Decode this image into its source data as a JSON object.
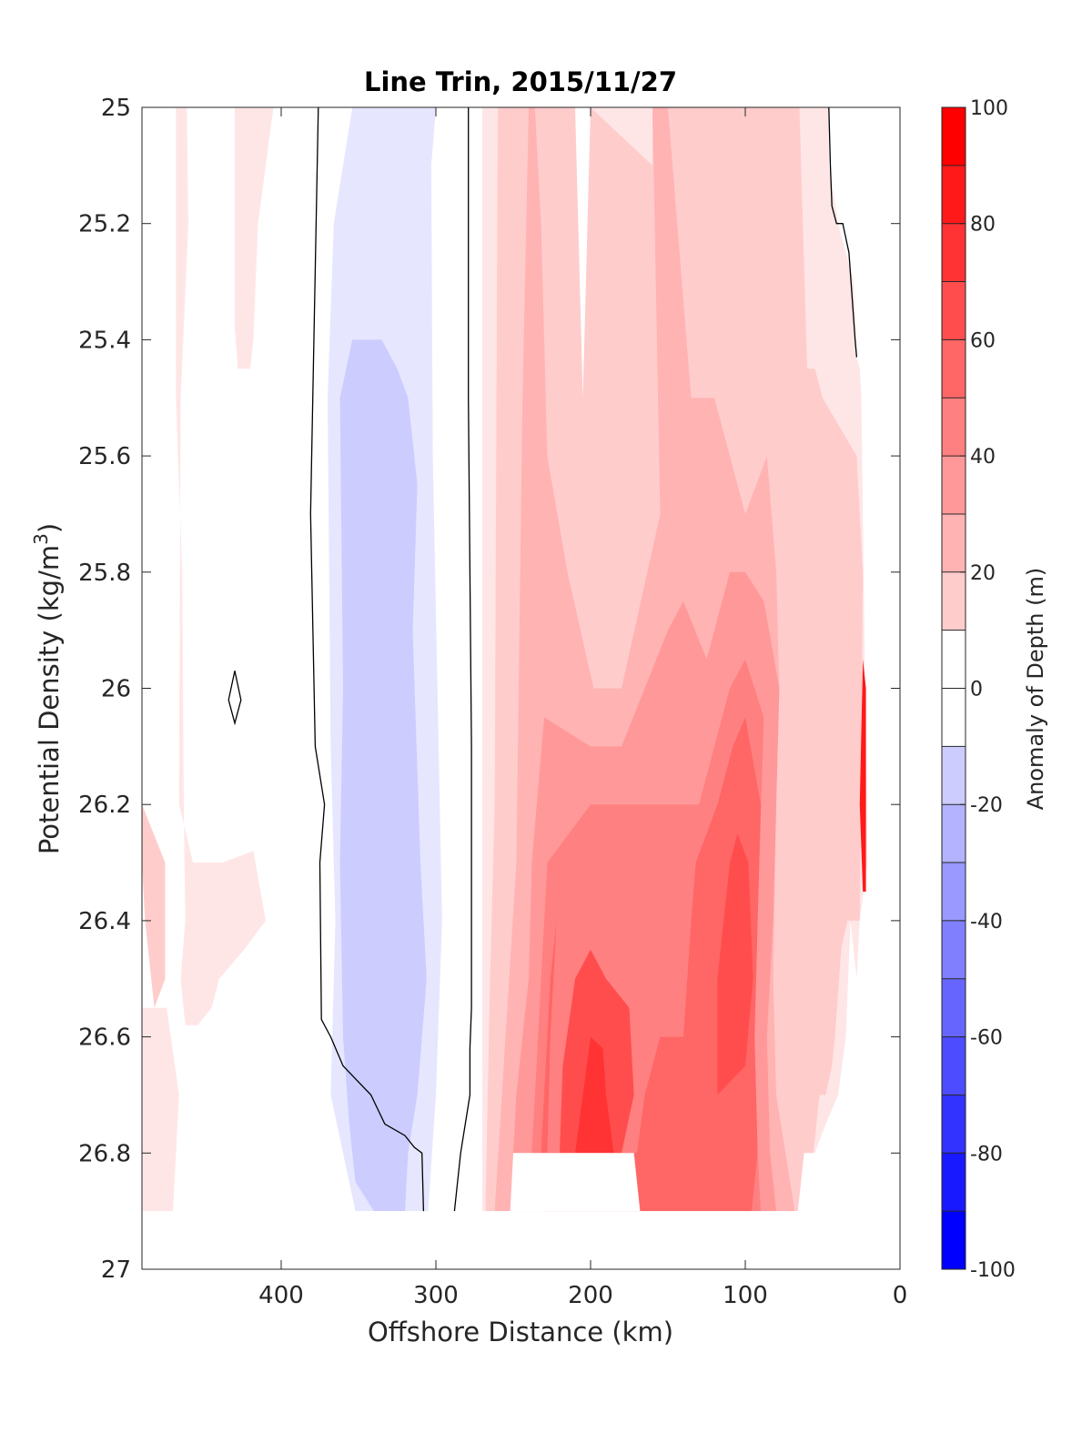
{
  "chart_data": {
    "type": "heatmap",
    "title": "Line Trin, 2015/11/27",
    "xlabel": "Offshore Distance (km)",
    "ylabel_main": "Potential Density (kg/m",
    "ylabel_sup": "3",
    "ylabel_close": ")",
    "colorbar_label": "Anomaly of Depth (m)",
    "xlim": [
      490,
      0
    ],
    "ylim": [
      25,
      27
    ],
    "x_reversed": true,
    "y_reversed": true,
    "xticks": [
      {
        "value": 400,
        "label": "400"
      },
      {
        "value": 300,
        "label": "300"
      },
      {
        "value": 200,
        "label": "200"
      },
      {
        "value": 100,
        "label": "100"
      },
      {
        "value": 0,
        "label": "0"
      }
    ],
    "yticks": [
      {
        "value": 25,
        "label": "25"
      },
      {
        "value": 25.2,
        "label": "25.2"
      },
      {
        "value": 25.4,
        "label": "25.4"
      },
      {
        "value": 25.6,
        "label": "25.6"
      },
      {
        "value": 25.8,
        "label": "25.8"
      },
      {
        "value": 26,
        "label": "26"
      },
      {
        "value": 26.2,
        "label": "26.2"
      },
      {
        "value": 26.4,
        "label": "26.4"
      },
      {
        "value": 26.6,
        "label": "26.6"
      },
      {
        "value": 26.8,
        "label": "26.8"
      },
      {
        "value": 27,
        "label": "27"
      }
    ],
    "colorbar": {
      "range": [
        -100,
        100
      ],
      "level_step": 10,
      "ticks": [
        {
          "value": 100,
          "label": "100"
        },
        {
          "value": 80,
          "label": "80"
        },
        {
          "value": 60,
          "label": "60"
        },
        {
          "value": 40,
          "label": "40"
        },
        {
          "value": 20,
          "label": "20"
        },
        {
          "value": 0,
          "label": "0"
        },
        {
          "value": -20,
          "label": "-20"
        },
        {
          "value": -40,
          "label": "-40"
        },
        {
          "value": -60,
          "label": "-60"
        },
        {
          "value": -80,
          "label": "-80"
        },
        {
          "value": -100,
          "label": "-100"
        }
      ]
    },
    "zero_contour": [
      [
        [
          376,
          25
        ],
        [
          381,
          25.7
        ],
        [
          378,
          26.1
        ],
        [
          372,
          26.2
        ],
        [
          375,
          26.3
        ],
        [
          374,
          26.57
        ],
        [
          368,
          26.6
        ],
        [
          360,
          26.65
        ],
        [
          342,
          26.7
        ],
        [
          333,
          26.75
        ],
        [
          320,
          26.77
        ],
        [
          314,
          26.79
        ],
        [
          309,
          26.8
        ],
        [
          308,
          26.9
        ]
      ],
      [
        [
          279,
          25
        ],
        [
          279,
          25.5
        ],
        [
          277,
          26.1
        ],
        [
          277,
          26.55
        ],
        [
          278,
          26.62
        ],
        [
          278,
          26.7
        ],
        [
          284,
          26.8
        ],
        [
          288,
          26.9
        ]
      ],
      [
        [
          46,
          25
        ],
        [
          45,
          25.1
        ],
        [
          44,
          25.17
        ],
        [
          41,
          25.2
        ],
        [
          37,
          25.2
        ],
        [
          33,
          25.25
        ],
        [
          29,
          25.4
        ],
        [
          28,
          25.43
        ]
      ],
      [
        [
          430,
          25.97
        ],
        [
          426,
          26.02
        ],
        [
          430,
          26.06
        ],
        [
          434,
          26.02
        ],
        [
          430,
          25.97
        ]
      ]
    ],
    "filled_regions": [
      {
        "level": 10,
        "polygon": [
          [
            490,
            25
          ],
          [
            490,
            26.9
          ],
          [
            470,
            26.9
          ],
          [
            466,
            26.7
          ],
          [
            474,
            26.55
          ],
          [
            490,
            26.55
          ]
        ]
      },
      {
        "level": 10,
        "polygon": [
          [
            468,
            25
          ],
          [
            461,
            25
          ],
          [
            460,
            25.2
          ],
          [
            465,
            25.5
          ],
          [
            466,
            26.2
          ],
          [
            457,
            26.3
          ],
          [
            438,
            26.3
          ],
          [
            418,
            26.28
          ],
          [
            410,
            26.4
          ],
          [
            424,
            26.45
          ],
          [
            440,
            26.5
          ],
          [
            445,
            26.55
          ],
          [
            454,
            26.58
          ],
          [
            462,
            26.58
          ],
          [
            465,
            26.5
          ],
          [
            462,
            26.4
          ],
          [
            463,
            26.2
          ],
          [
            464,
            25.8
          ],
          [
            468,
            25.5
          ],
          [
            468,
            25.25
          ]
        ]
      },
      {
        "level": 10,
        "polygon": [
          [
            430,
            25
          ],
          [
            430,
            25.38
          ],
          [
            428,
            25.45
          ],
          [
            420,
            25.45
          ],
          [
            418,
            25.4
          ],
          [
            415,
            25.2
          ],
          [
            405,
            25
          ],
          [
            395,
            25
          ]
        ]
      },
      {
        "level": 10,
        "polygon": [
          [
            270,
            25
          ],
          [
            270,
            26.9
          ],
          [
            58,
            26.9
          ],
          [
            55,
            26.8
          ],
          [
            48,
            26.75
          ],
          [
            40,
            26.7
          ],
          [
            35,
            26.6
          ],
          [
            32,
            26.4
          ],
          [
            28,
            26.5
          ],
          [
            26,
            26.4
          ],
          [
            21,
            26.3
          ],
          [
            23,
            25.9
          ],
          [
            25,
            25.5
          ],
          [
            26,
            25.45
          ],
          [
            28,
            25.43
          ],
          [
            30,
            25.3
          ],
          [
            40,
            25.2
          ],
          [
            46,
            25.1
          ],
          [
            46,
            25
          ],
          [
            65,
            25
          ]
        ]
      },
      {
        "level": 20,
        "polygon": [
          [
            490,
            25
          ],
          [
            490,
            26.2
          ],
          [
            475,
            26.3
          ],
          [
            475,
            26.5
          ],
          [
            482,
            26.55
          ],
          [
            488,
            26.4
          ],
          [
            490,
            26.3
          ]
        ]
      },
      {
        "level": 20,
        "polygon": [
          [
            260,
            25
          ],
          [
            262,
            26.2
          ],
          [
            265,
            26.5
          ],
          [
            268,
            26.9
          ],
          [
            60,
            26.9
          ],
          [
            56,
            26.8
          ],
          [
            52,
            26.7
          ],
          [
            48,
            26.7
          ],
          [
            44,
            26.65
          ],
          [
            42,
            26.6
          ],
          [
            38,
            26.45
          ],
          [
            34,
            26.4
          ],
          [
            26,
            26.4
          ],
          [
            24,
            25.8
          ],
          [
            28,
            25.6
          ],
          [
            50,
            25.5
          ],
          [
            55,
            25.45
          ],
          [
            60,
            25.45
          ],
          [
            65,
            25
          ],
          [
            160,
            25
          ],
          [
            160,
            25.1
          ],
          [
            200,
            25
          ],
          [
            210,
            25
          ]
        ]
      },
      {
        "level": 30,
        "polygon": [
          [
            240,
            25
          ],
          [
            244,
            25.5
          ],
          [
            248,
            26.3
          ],
          [
            255,
            26.6
          ],
          [
            262,
            26.9
          ],
          [
            68,
            26.9
          ],
          [
            74,
            26.8
          ],
          [
            80,
            26.7
          ],
          [
            82,
            26.5
          ],
          [
            80,
            26.2
          ],
          [
            78,
            26.0
          ],
          [
            80,
            25.8
          ],
          [
            86,
            25.6
          ],
          [
            100,
            25.7
          ],
          [
            120,
            25.5
          ],
          [
            135,
            25.5
          ],
          [
            150,
            25
          ],
          [
            160,
            25
          ],
          [
            155,
            25.7
          ],
          [
            180,
            26
          ],
          [
            198,
            26.0
          ],
          [
            215,
            25.8
          ],
          [
            228,
            25.6
          ],
          [
            232,
            25.2
          ],
          [
            236,
            25
          ]
        ]
      },
      {
        "level": 40,
        "polygon": [
          [
            238,
            26.3
          ],
          [
            240,
            26.5
          ],
          [
            248,
            26.7
          ],
          [
            252,
            26.9
          ],
          [
            80,
            26.9
          ],
          [
            84,
            26.8
          ],
          [
            86,
            26.6
          ],
          [
            82,
            26.4
          ],
          [
            78,
            26.0
          ],
          [
            88,
            25.85
          ],
          [
            100,
            25.8
          ],
          [
            110,
            25.8
          ],
          [
            125,
            25.95
          ],
          [
            140,
            25.85
          ],
          [
            150,
            25.9
          ],
          [
            165,
            26.0
          ],
          [
            180,
            26.1
          ],
          [
            200,
            26.1
          ],
          [
            230,
            26.05
          ]
        ]
      },
      {
        "level": 50,
        "polygon": [
          [
            228,
            26.3
          ],
          [
            232,
            26.5
          ],
          [
            236,
            26.7
          ],
          [
            240,
            26.9
          ],
          [
            90,
            26.9
          ],
          [
            92,
            26.8
          ],
          [
            94,
            26.6
          ],
          [
            92,
            26.4
          ],
          [
            88,
            26.05
          ],
          [
            100,
            25.95
          ],
          [
            110,
            26.0
          ],
          [
            130,
            26.2
          ],
          [
            140,
            26.2
          ],
          [
            160,
            26.2
          ],
          [
            180,
            26.2
          ],
          [
            200,
            26.2
          ]
        ]
      },
      {
        "level": 60,
        "polygon": [
          [
            222,
            26.4
          ],
          [
            226,
            26.5
          ],
          [
            230,
            26.7
          ],
          [
            232,
            26.8
          ],
          [
            200,
            26.8
          ],
          [
            170,
            26.8
          ],
          [
            165,
            26.7
          ],
          [
            155,
            26.6
          ],
          [
            140,
            26.6
          ],
          [
            135,
            26.4
          ],
          [
            132,
            26.3
          ],
          [
            118,
            26.2
          ],
          [
            108,
            26.1
          ],
          [
            100,
            26.05
          ],
          [
            90,
            26.2
          ],
          [
            94,
            26.6
          ],
          [
            92,
            26.8
          ],
          [
            96,
            26.9
          ],
          [
            230,
            26.9
          ],
          [
            228,
            26.8
          ],
          [
            226,
            26.6
          ],
          [
            220,
            26.3
          ]
        ]
      },
      {
        "level": 70,
        "polygon": [
          [
            210,
            26.5
          ],
          [
            218,
            26.65
          ],
          [
            220,
            26.8
          ],
          [
            180,
            26.8
          ],
          [
            172,
            26.7
          ],
          [
            175,
            26.55
          ],
          [
            190,
            26.5
          ],
          [
            200,
            26.45
          ]
        ]
      },
      {
        "level": 70,
        "polygon": [
          [
            110,
            26.3
          ],
          [
            118,
            26.5
          ],
          [
            118,
            26.7
          ],
          [
            100,
            26.65
          ],
          [
            95,
            26.5
          ],
          [
            98,
            26.3
          ],
          [
            105,
            26.25
          ]
        ]
      },
      {
        "level": 80,
        "polygon": [
          [
            200,
            26.6
          ],
          [
            205,
            26.7
          ],
          [
            210,
            26.8
          ],
          [
            185,
            26.8
          ],
          [
            190,
            26.7
          ],
          [
            192,
            26.62
          ]
        ]
      },
      {
        "level": 90,
        "polygon": [
          [
            22,
            26.2
          ],
          [
            22,
            26.35
          ],
          [
            24,
            26.35
          ],
          [
            26,
            26.2
          ],
          [
            24,
            25.95
          ],
          [
            22,
            26.0
          ]
        ]
      },
      {
        "level": -10,
        "polygon": [
          [
            354,
            25
          ],
          [
            366,
            25.2
          ],
          [
            370,
            25.5
          ],
          [
            368,
            26.1
          ],
          [
            365,
            26.4
          ],
          [
            368,
            26.7
          ],
          [
            352,
            26.9
          ],
          [
            305,
            26.9
          ],
          [
            300,
            26.7
          ],
          [
            296,
            26.4
          ],
          [
            299,
            26.0
          ],
          [
            302,
            25.6
          ],
          [
            303,
            25.1
          ],
          [
            300,
            25
          ]
        ]
      },
      {
        "level": -20,
        "polygon": [
          [
            335,
            25.4
          ],
          [
            354,
            25.4
          ],
          [
            362,
            25.5
          ],
          [
            360,
            26.0
          ],
          [
            362,
            26.3
          ],
          [
            360,
            26.6
          ],
          [
            356,
            26.75
          ],
          [
            352,
            26.85
          ],
          [
            340,
            26.9
          ],
          [
            320,
            26.9
          ],
          [
            318,
            26.8
          ],
          [
            312,
            26.7
          ],
          [
            306,
            26.5
          ],
          [
            310,
            26.3
          ],
          [
            315,
            25.9
          ],
          [
            312,
            25.65
          ],
          [
            318,
            25.5
          ],
          [
            325,
            25.45
          ]
        ]
      },
      {
        "level": 0,
        "polygon": [
          [
            250,
            26.8
          ],
          [
            252,
            26.9
          ],
          [
            168,
            26.9
          ],
          [
            172,
            26.8
          ]
        ]
      },
      {
        "level": 0,
        "polygon": [
          [
            490,
            26.9
          ],
          [
            0,
            26.9
          ],
          [
            0,
            27
          ],
          [
            490,
            27
          ]
        ]
      },
      {
        "level": 0,
        "polygon": [
          [
            62,
            26.8
          ],
          [
            16,
            26.8
          ],
          [
            16,
            26.9
          ],
          [
            66,
            26.9
          ]
        ]
      },
      {
        "level": 0,
        "polygon": [
          [
            200,
            25
          ],
          [
            205,
            25.5
          ],
          [
            210,
            25.0
          ]
        ]
      }
    ]
  }
}
